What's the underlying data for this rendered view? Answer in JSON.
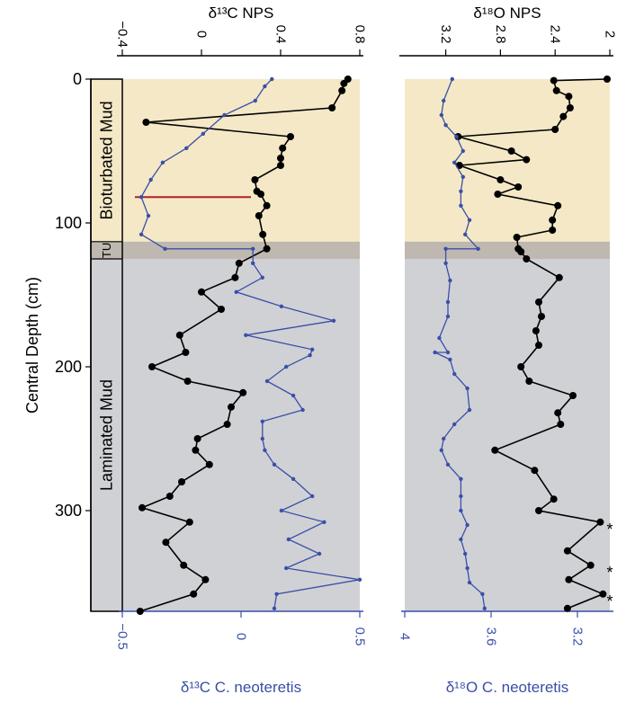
{
  "chart_data": [
    {
      "type": "line",
      "panel": "carbon",
      "top_axis": {
        "title": "δ¹³C NPS",
        "ticks": [
          -0.4,
          0,
          0.4,
          0.8
        ],
        "tick_labels": [
          "−0.4",
          "0",
          "0.4",
          "0.8"
        ],
        "range": [
          -0.4,
          0.8
        ]
      },
      "bottom_axis": {
        "title": "δ¹³C C. neoteretis",
        "ticks": [
          -0.5,
          0,
          0.5
        ],
        "tick_labels": [
          "−0.5",
          "0",
          "0.5"
        ],
        "range": [
          -0.5,
          0.5
        ]
      },
      "series": [
        {
          "id": "nps",
          "color": "#000000",
          "axis": "top",
          "points": [
            [
              0.74,
              0
            ],
            [
              0.72,
              3
            ],
            [
              0.71,
              8
            ],
            [
              0.66,
              20
            ],
            [
              -0.28,
              30
            ],
            [
              0.45,
              40
            ],
            [
              0.41,
              48
            ],
            [
              0.4,
              55
            ],
            [
              0.4,
              60
            ],
            [
              0.27,
              70
            ],
            [
              0.28,
              78
            ],
            [
              0.3,
              80
            ],
            [
              0.33,
              88
            ],
            [
              0.29,
              95
            ],
            [
              0.31,
              108
            ],
            [
              0.33,
              118
            ],
            [
              0.19,
              128
            ],
            [
              0.17,
              138
            ],
            [
              0.0,
              148
            ],
            [
              0.1,
              160
            ],
            [
              -0.11,
              178
            ],
            [
              -0.08,
              190
            ],
            [
              -0.25,
              200
            ],
            [
              -0.07,
              210
            ],
            [
              0.21,
              218
            ],
            [
              0.15,
              228
            ],
            [
              0.13,
              240
            ],
            [
              -0.02,
              250
            ],
            [
              -0.03,
              258
            ],
            [
              0.04,
              268
            ],
            [
              -0.1,
              280
            ],
            [
              -0.16,
              290
            ],
            [
              -0.3,
              298
            ],
            [
              -0.06,
              308
            ],
            [
              -0.18,
              322
            ],
            [
              -0.09,
              338
            ],
            [
              0.02,
              348
            ],
            [
              -0.04,
              358
            ],
            [
              -0.31,
              370
            ]
          ]
        },
        {
          "id": "neoteretis",
          "color": "#3a4fa8",
          "axis": "bottom",
          "points": [
            [
              0.13,
              0
            ],
            [
              0.1,
              5
            ],
            [
              0.06,
              15
            ],
            [
              -0.07,
              25
            ],
            [
              -0.16,
              38
            ],
            [
              -0.23,
              48
            ],
            [
              -0.33,
              58
            ],
            [
              -0.38,
              70
            ],
            [
              -0.42,
              82
            ],
            [
              -0.39,
              95
            ],
            [
              -0.42,
              108
            ],
            [
              -0.32,
              118
            ],
            [
              0.05,
              118
            ],
            [
              0.05,
              128
            ],
            [
              0.09,
              138
            ],
            [
              -0.02,
              148
            ],
            [
              0.17,
              158
            ],
            [
              0.39,
              168
            ],
            [
              0.02,
              178
            ],
            [
              0.3,
              188
            ],
            [
              0.29,
              192
            ],
            [
              0.19,
              200
            ],
            [
              0.11,
              210
            ],
            [
              0.22,
              220
            ],
            [
              0.26,
              230
            ],
            [
              0.09,
              238
            ],
            [
              0.09,
              250
            ],
            [
              0.1,
              258
            ],
            [
              0.14,
              268
            ],
            [
              0.22,
              278
            ],
            [
              0.3,
              290
            ],
            [
              0.17,
              300
            ],
            [
              0.35,
              308
            ],
            [
              0.2,
              320
            ],
            [
              0.33,
              330
            ],
            [
              0.19,
              340
            ],
            [
              0.5,
              348
            ],
            [
              0.15,
              358
            ],
            [
              0.14,
              368
            ]
          ]
        }
      ],
      "annotation_line": {
        "depth": 82,
        "from": -0.4,
        "to": 0.25,
        "color": "#b0202a"
      }
    },
    {
      "type": "line",
      "panel": "oxygen",
      "top_axis": {
        "title": "δ¹⁸O NPS",
        "ticks": [
          3.2,
          2.8,
          2.4,
          2
        ],
        "tick_labels": [
          "3.2",
          "2.8",
          "2.4",
          "2"
        ],
        "range": [
          3.5,
          2.0
        ],
        "reversed": true
      },
      "bottom_axis": {
        "title": "δ¹⁸O C. neoteretis",
        "ticks": [
          4,
          3.6,
          3.2
        ],
        "tick_labels": [
          "4",
          "3.6",
          "3.2"
        ],
        "range": [
          4.0,
          3.05
        ],
        "reversed": true
      },
      "series": [
        {
          "id": "nps",
          "color": "#000000",
          "axis": "top",
          "points": [
            [
              2.02,
              0
            ],
            [
              2.41,
              1
            ],
            [
              2.39,
              8
            ],
            [
              2.3,
              12
            ],
            [
              2.29,
              20
            ],
            [
              2.34,
              26
            ],
            [
              2.4,
              35
            ],
            [
              3.11,
              40
            ],
            [
              2.72,
              50
            ],
            [
              2.61,
              56
            ],
            [
              3.1,
              60
            ],
            [
              2.8,
              70
            ],
            [
              2.67,
              75
            ],
            [
              2.82,
              80
            ],
            [
              2.38,
              88
            ],
            [
              2.42,
              98
            ],
            [
              2.42,
              105
            ],
            [
              2.68,
              110
            ],
            [
              2.67,
              118
            ],
            [
              2.65,
              120
            ],
            [
              2.61,
              125
            ],
            [
              2.37,
              138
            ],
            [
              2.52,
              155
            ],
            [
              2.5,
              165
            ],
            [
              2.54,
              175
            ],
            [
              2.52,
              185
            ],
            [
              2.65,
              200
            ],
            [
              2.59,
              210
            ],
            [
              2.27,
              220
            ],
            [
              2.38,
              232
            ],
            [
              2.36,
              240
            ],
            [
              2.84,
              258
            ],
            [
              2.55,
              272
            ],
            [
              2.41,
              292
            ],
            [
              2.52,
              300
            ],
            [
              2.07,
              308
            ],
            [
              2.31,
              328
            ],
            [
              2.14,
              338
            ],
            [
              2.3,
              348
            ],
            [
              2.05,
              358
            ],
            [
              2.31,
              368
            ]
          ]
        },
        {
          "id": "neoteretis",
          "color": "#3a4fa8",
          "axis": "bottom",
          "points": [
            [
              3.78,
              0
            ],
            [
              3.82,
              15
            ],
            [
              3.83,
              25
            ],
            [
              3.81,
              32
            ],
            [
              3.76,
              40
            ],
            [
              3.73,
              50
            ],
            [
              3.77,
              58
            ],
            [
              3.73,
              68
            ],
            [
              3.74,
              78
            ],
            [
              3.74,
              88
            ],
            [
              3.7,
              98
            ],
            [
              3.72,
              108
            ],
            [
              3.66,
              118
            ],
            [
              3.81,
              118
            ],
            [
              3.81,
              128
            ],
            [
              3.79,
              140
            ],
            [
              3.8,
              155
            ],
            [
              3.8,
              165
            ],
            [
              3.84,
              180
            ],
            [
              3.8,
              190
            ],
            [
              3.86,
              190
            ],
            [
              3.79,
              195
            ],
            [
              3.77,
              205
            ],
            [
              3.71,
              215
            ],
            [
              3.7,
              230
            ],
            [
              3.77,
              240
            ],
            [
              3.82,
              250
            ],
            [
              3.83,
              258
            ],
            [
              3.8,
              268
            ],
            [
              3.74,
              278
            ],
            [
              3.74,
              290
            ],
            [
              3.74,
              300
            ],
            [
              3.71,
              310
            ],
            [
              3.74,
              320
            ],
            [
              3.72,
              330
            ],
            [
              3.71,
              340
            ],
            [
              3.7,
              350
            ],
            [
              3.64,
              358
            ],
            [
              3.63,
              368
            ]
          ]
        }
      ],
      "asterisks": [
        308,
        338,
        358
      ]
    }
  ],
  "y_axis": {
    "title": "Central Depth (cm)",
    "range": [
      0,
      370
    ],
    "ticks": [
      0,
      100,
      200,
      300
    ],
    "tick_labels": [
      "0",
      "100",
      "200",
      "300"
    ],
    "reversed": true
  },
  "zones": [
    {
      "label": "Bioturbated Mud",
      "from": 0,
      "to": 113,
      "color": "#f4e8c6"
    },
    {
      "label": "TU",
      "from": 113,
      "to": 125,
      "color": "#bfb8b0"
    },
    {
      "label": "Laminated Mud",
      "from": 125,
      "to": 370,
      "color": "#d0d1d5"
    }
  ],
  "colors": {
    "nps": "#000000",
    "neoteretis": "#3a4fa8",
    "annotation": "#b0202a"
  }
}
